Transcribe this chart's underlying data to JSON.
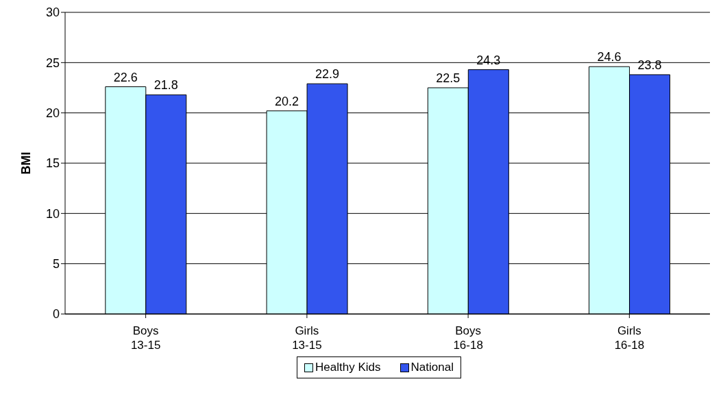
{
  "chart_data": {
    "type": "bar",
    "ylabel": "BMI",
    "categories": [
      "Boys\n13-15",
      "Girls\n13-15",
      "Boys\n16-18",
      "Girls\n16-18"
    ],
    "series": [
      {
        "name": "Healthy Kids",
        "color": "#ccffff",
        "values": [
          22.6,
          20.2,
          22.5,
          24.6
        ]
      },
      {
        "name": "National",
        "color": "#3355ee",
        "values": [
          21.8,
          22.9,
          24.3,
          23.8
        ]
      }
    ],
    "ylim": [
      0,
      30
    ],
    "yticks": [
      0,
      5,
      10,
      15,
      20,
      25,
      30
    ],
    "grid": "y",
    "legend": "bottom",
    "data_labels": true
  }
}
